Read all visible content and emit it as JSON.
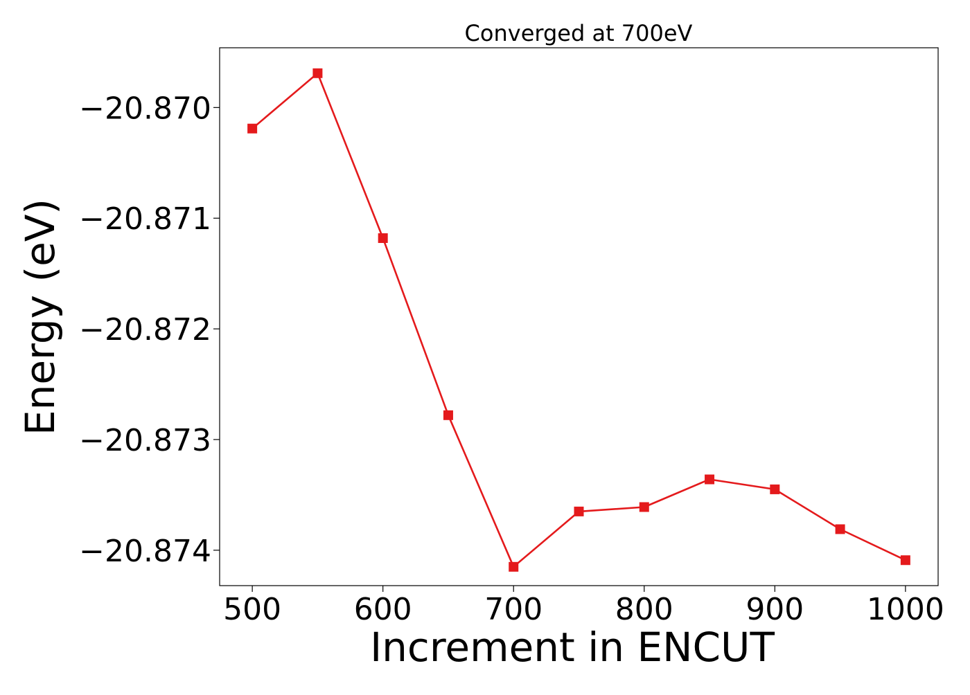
{
  "chart_data": {
    "type": "line",
    "title": "Converged at 700eV",
    "xlabel": "Increment in ENCUT",
    "ylabel": "Energy (eV)",
    "xlim": [
      475,
      1025
    ],
    "ylim": [
      -20.87432,
      -20.86946
    ],
    "xticks": [
      500,
      600,
      700,
      800,
      900,
      1000
    ],
    "xtick_labels": [
      "500",
      "600",
      "700",
      "800",
      "900",
      "1000"
    ],
    "yticks": [
      -20.87,
      -20.871,
      -20.872,
      -20.873,
      -20.874
    ],
    "ytick_labels": [
      "−20.870",
      "−20.871",
      "−20.872",
      "−20.873",
      "−20.874"
    ],
    "grid": false,
    "legend": "none",
    "series": [
      {
        "color": "#e41a1c",
        "marker": "square",
        "x": [
          500,
          550,
          600,
          650,
          700,
          750,
          800,
          850,
          900,
          950,
          1000
        ],
        "y": [
          -20.87019,
          -20.86969,
          -20.87118,
          -20.87278,
          -20.87415,
          -20.87365,
          -20.87361,
          -20.87336,
          -20.87345,
          -20.87381,
          -20.87409
        ]
      }
    ]
  }
}
